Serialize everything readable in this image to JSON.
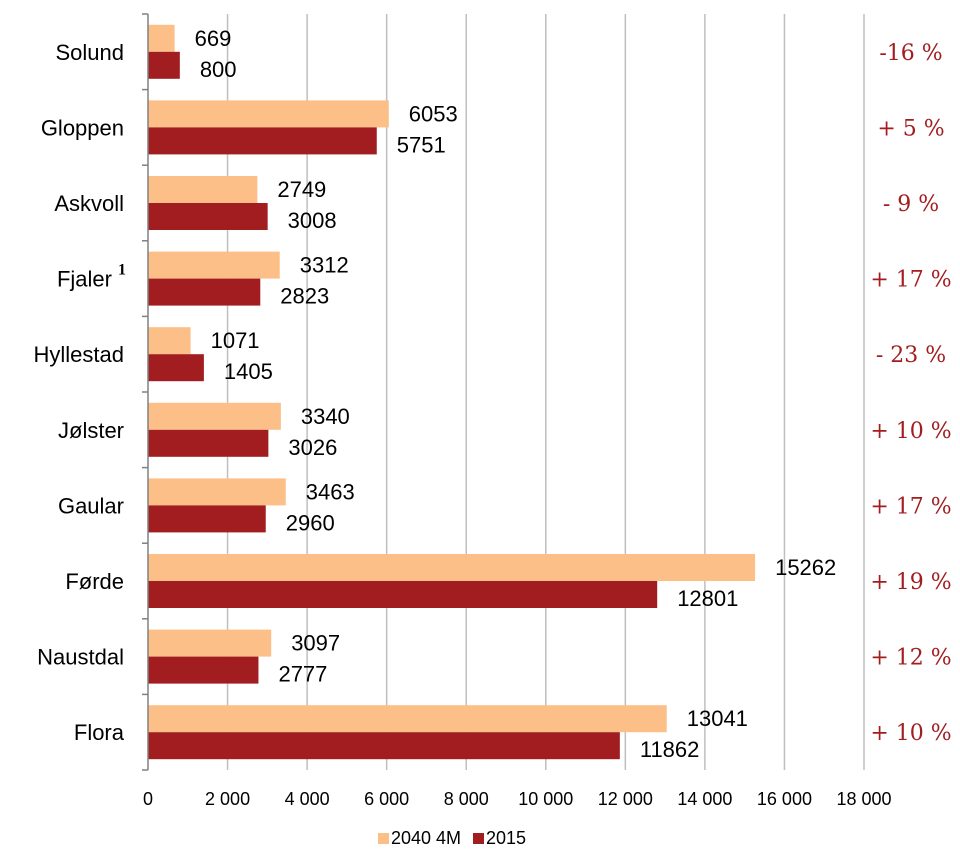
{
  "chart_data": {
    "type": "bar",
    "orientation": "horizontal",
    "categories": [
      "Solund",
      "Gloppen",
      "Askvoll",
      "Fjaler",
      "Hyllestad",
      "Jølster",
      "Gaular",
      "Førde",
      "Naustdal",
      "Flora"
    ],
    "category_superscripts": {
      "Fjaler": "1"
    },
    "series": [
      {
        "name": "2040 4M",
        "color": "#fcbf88",
        "values": [
          669,
          6053,
          2749,
          3312,
          1071,
          3340,
          3463,
          15262,
          3097,
          13041
        ]
      },
      {
        "name": "2015",
        "color": "#a21d20",
        "values": [
          800,
          5751,
          3008,
          2823,
          1405,
          3026,
          2960,
          12801,
          2777,
          11862
        ]
      }
    ],
    "change_labels": [
      "-16 %",
      "+ 5 %",
      "- 9 %",
      "+ 17 %",
      "- 23 %",
      "+ 10 %",
      "+ 17 %",
      "+ 19 %",
      "+ 12 %",
      "+ 10 %"
    ],
    "change_label_color": "#a21d20",
    "xlim": [
      0,
      18000
    ],
    "x_ticks": [
      0,
      2000,
      4000,
      6000,
      8000,
      10000,
      12000,
      14000,
      16000,
      18000
    ],
    "x_tick_labels": [
      "0",
      "2 000",
      "4 000",
      "6 000",
      "8 000",
      "10 000",
      "12 000",
      "14 000",
      "16 000",
      "18 000"
    ],
    "grid": true,
    "grid_color": "#bfbfbf",
    "legend_position": "bottom",
    "title": "",
    "xlabel": "",
    "ylabel": ""
  }
}
